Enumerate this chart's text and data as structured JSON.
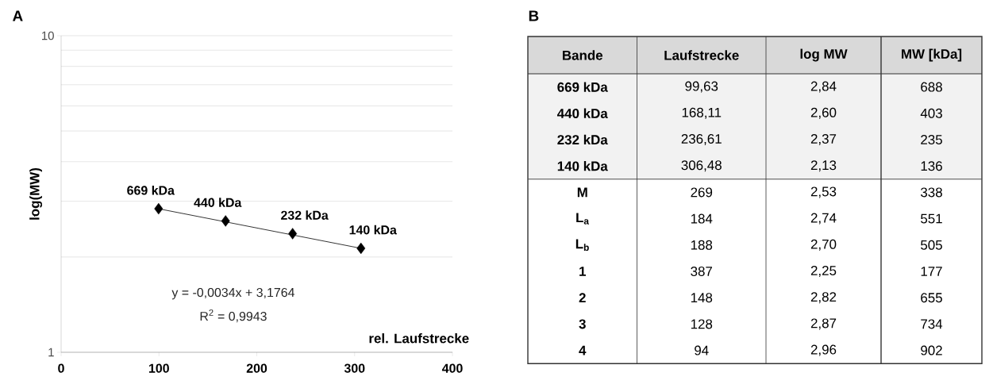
{
  "chart_data": [
    {
      "type": "scatter",
      "title": "A",
      "xlabel": "rel. Laufstrecke",
      "ylabel": "log(MW)",
      "x": [
        99.63,
        168.11,
        236.61,
        306.48
      ],
      "series": [
        {
          "type": "scatter",
          "color": "#000000",
          "marker": "diamond",
          "values": [
            2.84,
            2.6,
            2.37,
            2.13
          ]
        },
        {
          "type": "line",
          "color": "#000000",
          "x": [
            99.63,
            306.48
          ],
          "values": [
            2.84,
            2.13
          ]
        }
      ],
      "xlim": [
        0,
        400
      ],
      "ylim": [
        1,
        10
      ],
      "xticks": [
        0,
        100,
        200,
        300,
        400
      ],
      "yticks": [
        1,
        10
      ],
      "log": "y",
      "grid": "y",
      "annotations": [
        {
          "text": "669 kDa",
          "x": 99.63,
          "y": 2.84
        },
        {
          "text": "440 kDa",
          "x": 168.11,
          "y": 2.6
        },
        {
          "text": "232 kDa",
          "x": 236.61,
          "y": 2.37
        },
        {
          "text": "140 kDa",
          "x": 306.48,
          "y": 2.13
        },
        "y = -0,0034x + 3,1764",
        "R$^{2}$ = 0,9943"
      ]
    },
    {
      "type": "other",
      "title": "B",
      "categories": [
        "Bande",
        "Laufstrecke",
        "log MW",
        "MW [kDa]"
      ],
      "y_categories": [
        "669 kDa",
        "440 kDa",
        "232 kDa",
        "140 kDa",
        "M",
        "L$_{a}$",
        "L$_{b}$",
        "1",
        "2",
        "3",
        "4"
      ],
      "cell_labels": [
        [
          "99,63",
          "2,84",
          "688"
        ],
        [
          "168,11",
          "2,60",
          "403"
        ],
        [
          "236,61",
          "2,37",
          "235"
        ],
        [
          "306,48",
          "2,13",
          "136"
        ],
        [
          "269",
          "2,53",
          "338"
        ],
        [
          "184",
          "2,74",
          "551"
        ],
        [
          "188",
          "2,70",
          "505"
        ],
        [
          "387",
          "2,25",
          "177"
        ],
        [
          "148",
          "2,82",
          "655"
        ],
        [
          "128",
          "2,87",
          "734"
        ],
        [
          "94",
          "2,96",
          "902"
        ]
      ]
    }
  ]
}
